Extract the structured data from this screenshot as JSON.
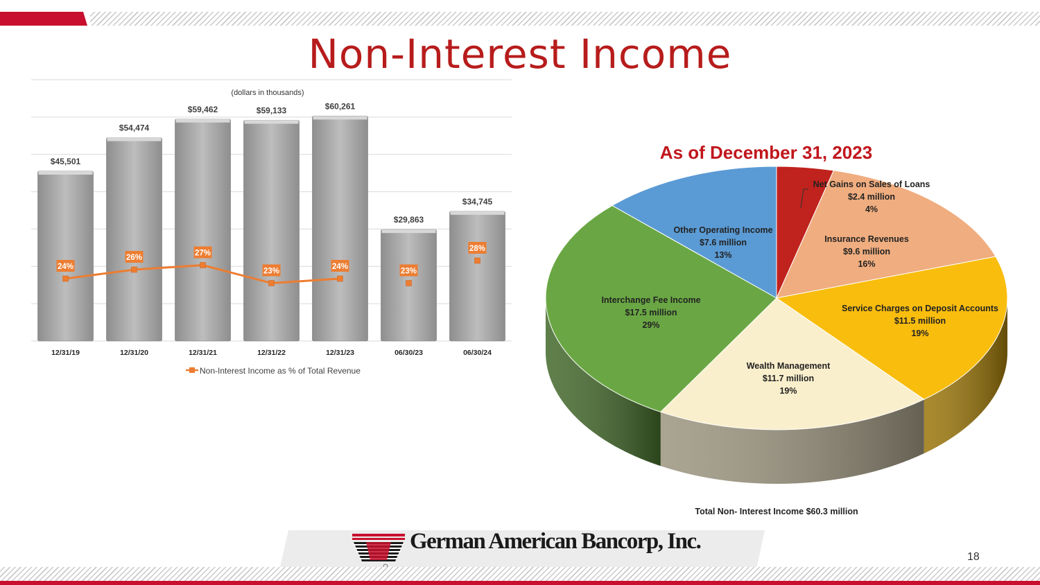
{
  "title": "Non-Interest Income",
  "colors": {
    "brand_red": "#c8102e",
    "title_red": "#b71c1c",
    "bar_gray": "#a8a8a8",
    "line_orange": "#ed7d31"
  },
  "chart_data": [
    {
      "type": "bar",
      "subtitle": "(dollars in thousands)",
      "categories": [
        "12/31/19",
        "12/31/20",
        "12/31/21",
        "12/31/22",
        "12/31/23",
        "06/30/23",
        "06/30/24"
      ],
      "values": [
        45501,
        54474,
        59462,
        59133,
        60261,
        29863,
        34745
      ],
      "value_labels": [
        "$45,501",
        "$54,474",
        "$59,462",
        "$59,133",
        "$60,261",
        "$29,863",
        "$34,745"
      ],
      "ylim": [
        0,
        70000
      ],
      "grid": true,
      "series": [
        {
          "name": "Non-Interest Income as % of Total Revenue",
          "type": "line",
          "values": [
            24,
            26,
            27,
            23,
            24,
            23,
            28
          ],
          "labels": [
            "24%",
            "26%",
            "27%",
            "23%",
            "24%",
            "23%",
            "28%"
          ],
          "connected_through_index": 4
        }
      ],
      "legend": "bottom"
    },
    {
      "type": "pie",
      "title": "As of December 31, 2023",
      "slices": [
        {
          "name": "Net Gains on Sales of Loans",
          "amount": "$2.4 million",
          "percent": "4%",
          "value": 2.4,
          "color": "#c0221d"
        },
        {
          "name": "Insurance Revenues",
          "amount": "$9.6 million",
          "percent": "16%",
          "value": 9.6,
          "color": "#f0ad7f"
        },
        {
          "name": "Service Charges on Deposit Accounts",
          "amount": "$11.5 million",
          "percent": "19%",
          "value": 11.5,
          "color": "#f9bd0d"
        },
        {
          "name": "Wealth Management",
          "amount": "$11.7 million",
          "percent": "19%",
          "value": 11.7,
          "color": "#faefcc"
        },
        {
          "name": "Interchange Fee Income",
          "amount": "$17.5 million",
          "percent": "29%",
          "value": 17.5,
          "color": "#6aa744"
        },
        {
          "name": "Other Operating Income",
          "amount": "$7.6 million",
          "percent": "13%",
          "value": 7.6,
          "color": "#5b9bd5"
        }
      ],
      "footnote": "Total Non- Interest Income $60.3 million"
    }
  ],
  "footer": {
    "company": "German American Bancorp, Inc.",
    "page": "18"
  }
}
